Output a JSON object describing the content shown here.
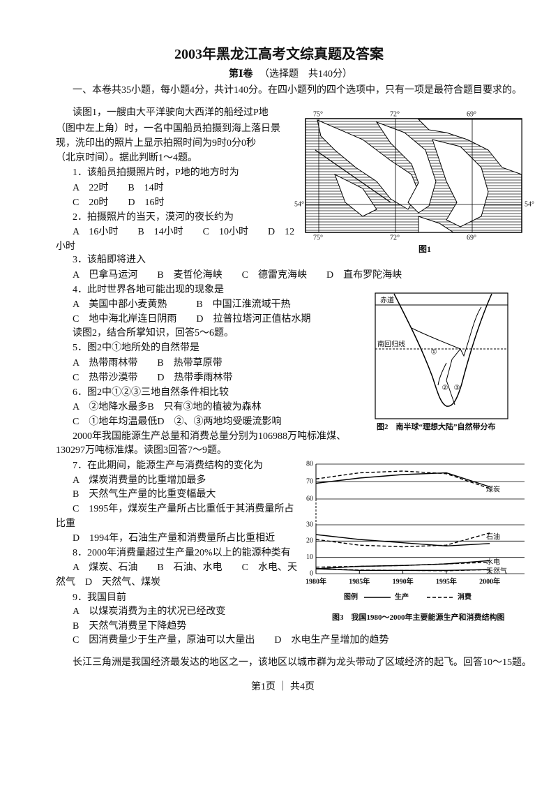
{
  "header": {
    "title": "2003年黑龙江高考文综真题及答案",
    "section_label": "第Ⅰ卷",
    "section_note": "（选择题　共140分）",
    "instruction": "一、本卷共35小题，每小题4分，共计140分。在四小题列的四个选项中，只有一项是最符合题目要求的。"
  },
  "body": {
    "lines": [
      "读图1，一艘由大平洋驶向大西洋的船经过P地",
      "（图中左上角）时，一名中国船员拍摄到海上落日景",
      "现，洗印出的照片上显示拍照时间为9时0分0秒",
      "（北京时间）。据此判断1～4题。",
      "1．该船员拍摄照片时，P地的地方时为",
      "A　22时　　B　14时",
      "C　20时　　D　16时",
      "2．拍摄照片的当天，漠河的夜长约为",
      "A　16小时　　B　14小时　　C　10小时　　D　12",
      "小时",
      "3．该船即将进入",
      "A　巴拿马运河　　B　麦哲伦海峡　　C　德雷克海峡　　D　直布罗陀海峡",
      "4．此时世界各地可能出现的现象是",
      "A　美国中部小麦黄熟　　　B　中国江淮流域干热",
      "C　地中海北岸连日阴雨　　D　拉普拉塔河正值枯水期",
      "读图2，结合所掌知识，回答5～6题。",
      "5．图2中①地所处的自然带是",
      "A　热带雨林带　　B　热带草原带",
      "C　热带沙漠带　　D　热带季雨林带",
      "6．图2中①②③三地自然条件相比较",
      "A　②地降水最多B　只有③地的植被为森林",
      "C　①地年均温最低D　②、③两地均受暖流影响",
      "2000年我国能源生产总量和消费总量分别为106988万吨标准煤、",
      "130297万吨标准煤。读图3回答7～9题。",
      "7．在此期间，能源生产与消费结构的变化为",
      "A　煤炭消费量的比重增加最多",
      "B　天然气生产量的比重变幅最大",
      "C　1995年，煤炭生产量所占比重低于其消费量所占",
      "比重",
      "D　1994年，石油生产量和消费量所占比重相近",
      "8．2000年消费量超过生产量20%以上的能源种类有",
      "A　煤炭、石油　　B　石油、水电　　C　水电、天",
      "然气　D　天然气、煤炭",
      "9．我国目前",
      "A　以煤炭消费为主的状况已经改变",
      "B　天然气消费呈下降趋势",
      "C　因消费量少于生产量，原油可以大量出　　D　水电生产呈增加的趋势",
      "长江三角洲是我国经济最发达的地区之一，该地区以城市群为龙头带动了区域经济的起飞。回答10～15题。"
    ]
  },
  "figures": {
    "fig1": {
      "caption": "图1",
      "lon_labels": [
        "75°",
        "72°",
        "69°"
      ],
      "lat_label": "54°"
    },
    "fig2": {
      "caption": "图2　南半球“理想大陆”自然带分布",
      "equator": "赤道",
      "tropic": "南回归线",
      "markers": [
        "①",
        "②",
        "③"
      ]
    },
    "fig3": {
      "caption": "图3　我国1980～2000年主要能源生产和消费结构图",
      "legend": {
        "title": "图例",
        "production": "生产",
        "consumption": "消费"
      },
      "ylim": [
        0,
        80
      ],
      "axis_break": [
        30,
        60
      ],
      "yticks": [
        0,
        10,
        20,
        30,
        60,
        70,
        80
      ],
      "xlim": [
        1980,
        2004
      ],
      "x": [
        1980,
        1985,
        1990,
        1995,
        2000
      ],
      "xticks": [
        {
          "value": 1980,
          "label": "1980年"
        },
        {
          "value": 1985,
          "label": "1985年"
        },
        {
          "value": 1990,
          "label": "1990年"
        },
        {
          "value": 1995,
          "label": "1995年"
        },
        {
          "value": 2000,
          "label": "2000年"
        }
      ],
      "series": [
        {
          "name": "煤炭",
          "production": [
            69,
            72,
            74,
            75,
            67
          ],
          "consumption": [
            71.5,
            75,
            76,
            74.5,
            66
          ]
        },
        {
          "name": "石油",
          "production": [
            24,
            21,
            19,
            17,
            18.5
          ],
          "consumption": [
            21,
            17.5,
            16.5,
            17.5,
            25
          ]
        },
        {
          "name": "水电",
          "production": [
            3,
            4.5,
            5,
            6,
            8
          ],
          "consumption": [
            4,
            4.5,
            5,
            6,
            7
          ]
        },
        {
          "name": "天然气",
          "production": [
            3,
            2,
            2,
            2,
            2.5
          ],
          "consumption": [
            3,
            2.2,
            2,
            1.8,
            2.5
          ]
        }
      ]
    }
  },
  "footer": {
    "page": "第1页 ｜ 共4页"
  }
}
